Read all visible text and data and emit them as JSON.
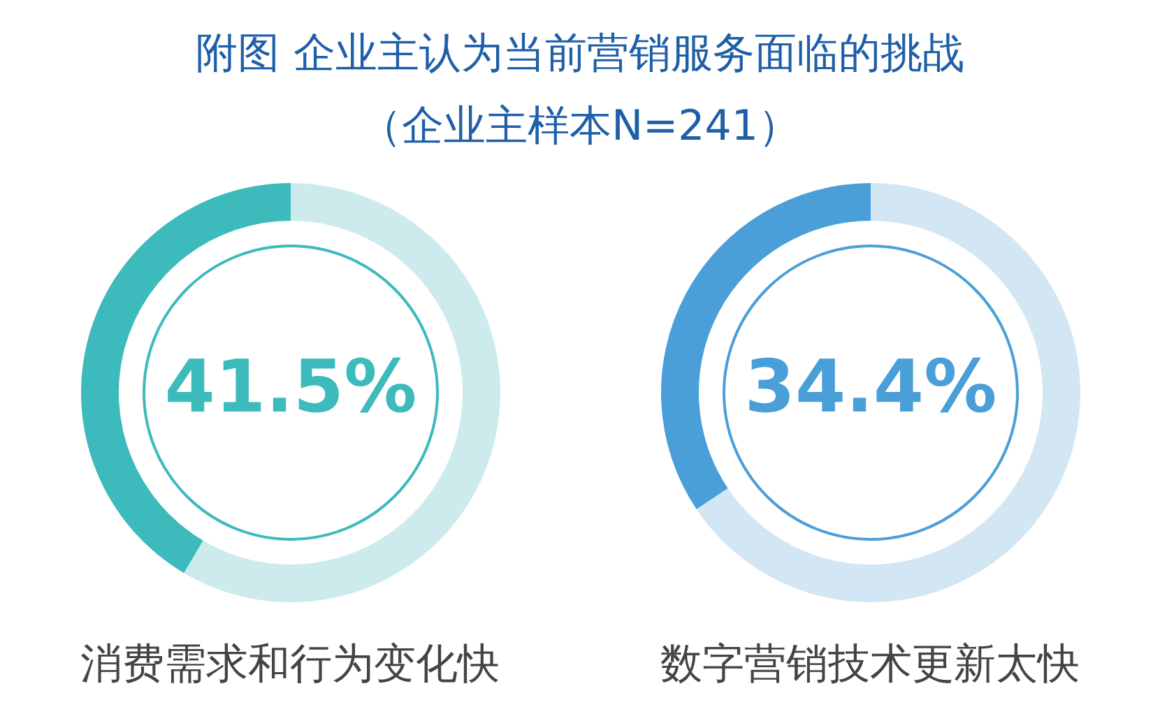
{
  "chart_data": [
    {
      "type": "other",
      "title": "附图  企业主认为当前营销服务面临的挑战",
      "subtitle": "（企业主样本N=241）"
    },
    {
      "type": "donut",
      "title": "消费需求和行为变化快",
      "categories": [
        null,
        null
      ],
      "values": [
        41.5,
        58.5
      ],
      "colors": [
        "#3dbabb",
        "#cdebec"
      ],
      "value_labels": [
        "41.5%",
        null
      ]
    },
    {
      "type": "donut",
      "title": "数字营销技术更新太快",
      "categories": [
        null,
        null
      ],
      "values": [
        34.4,
        65.6
      ],
      "colors": [
        "#4a9fd8",
        "#d3e6f4"
      ],
      "value_labels": [
        "34.4%",
        null
      ]
    }
  ]
}
